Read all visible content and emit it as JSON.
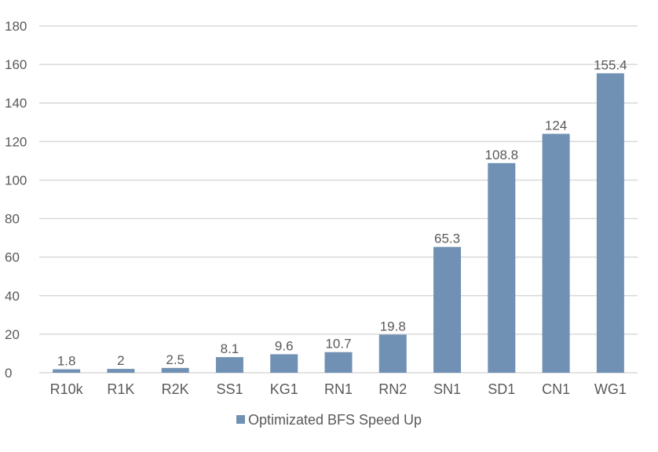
{
  "chart_data": {
    "type": "bar",
    "title": "",
    "xlabel": "",
    "ylabel": "",
    "categories": [
      "R10k",
      "R1K",
      "R2K",
      "SS1",
      "KG1",
      "RN1",
      "RN2",
      "SN1",
      "SD1",
      "CN1",
      "WG1"
    ],
    "series": [
      {
        "name": "Optimizated BFS Speed Up",
        "values": [
          1.8,
          2,
          2.5,
          8.1,
          9.6,
          10.7,
          19.8,
          65.3,
          108.8,
          124,
          155.4
        ],
        "labels": [
          "1.8",
          "2",
          "2.5",
          "8.1",
          "9.6",
          "10.7",
          "19.8",
          "65.3",
          "108.8",
          "124",
          "155.4"
        ],
        "color": "#7191b4"
      }
    ],
    "ylim": [
      0,
      180
    ],
    "yticks": [
      0,
      20,
      40,
      60,
      80,
      100,
      120,
      140,
      160,
      180
    ],
    "grid": true,
    "legend_position": "bottom"
  },
  "colors": {
    "grid": "#d9d9d9",
    "text": "#595959"
  }
}
